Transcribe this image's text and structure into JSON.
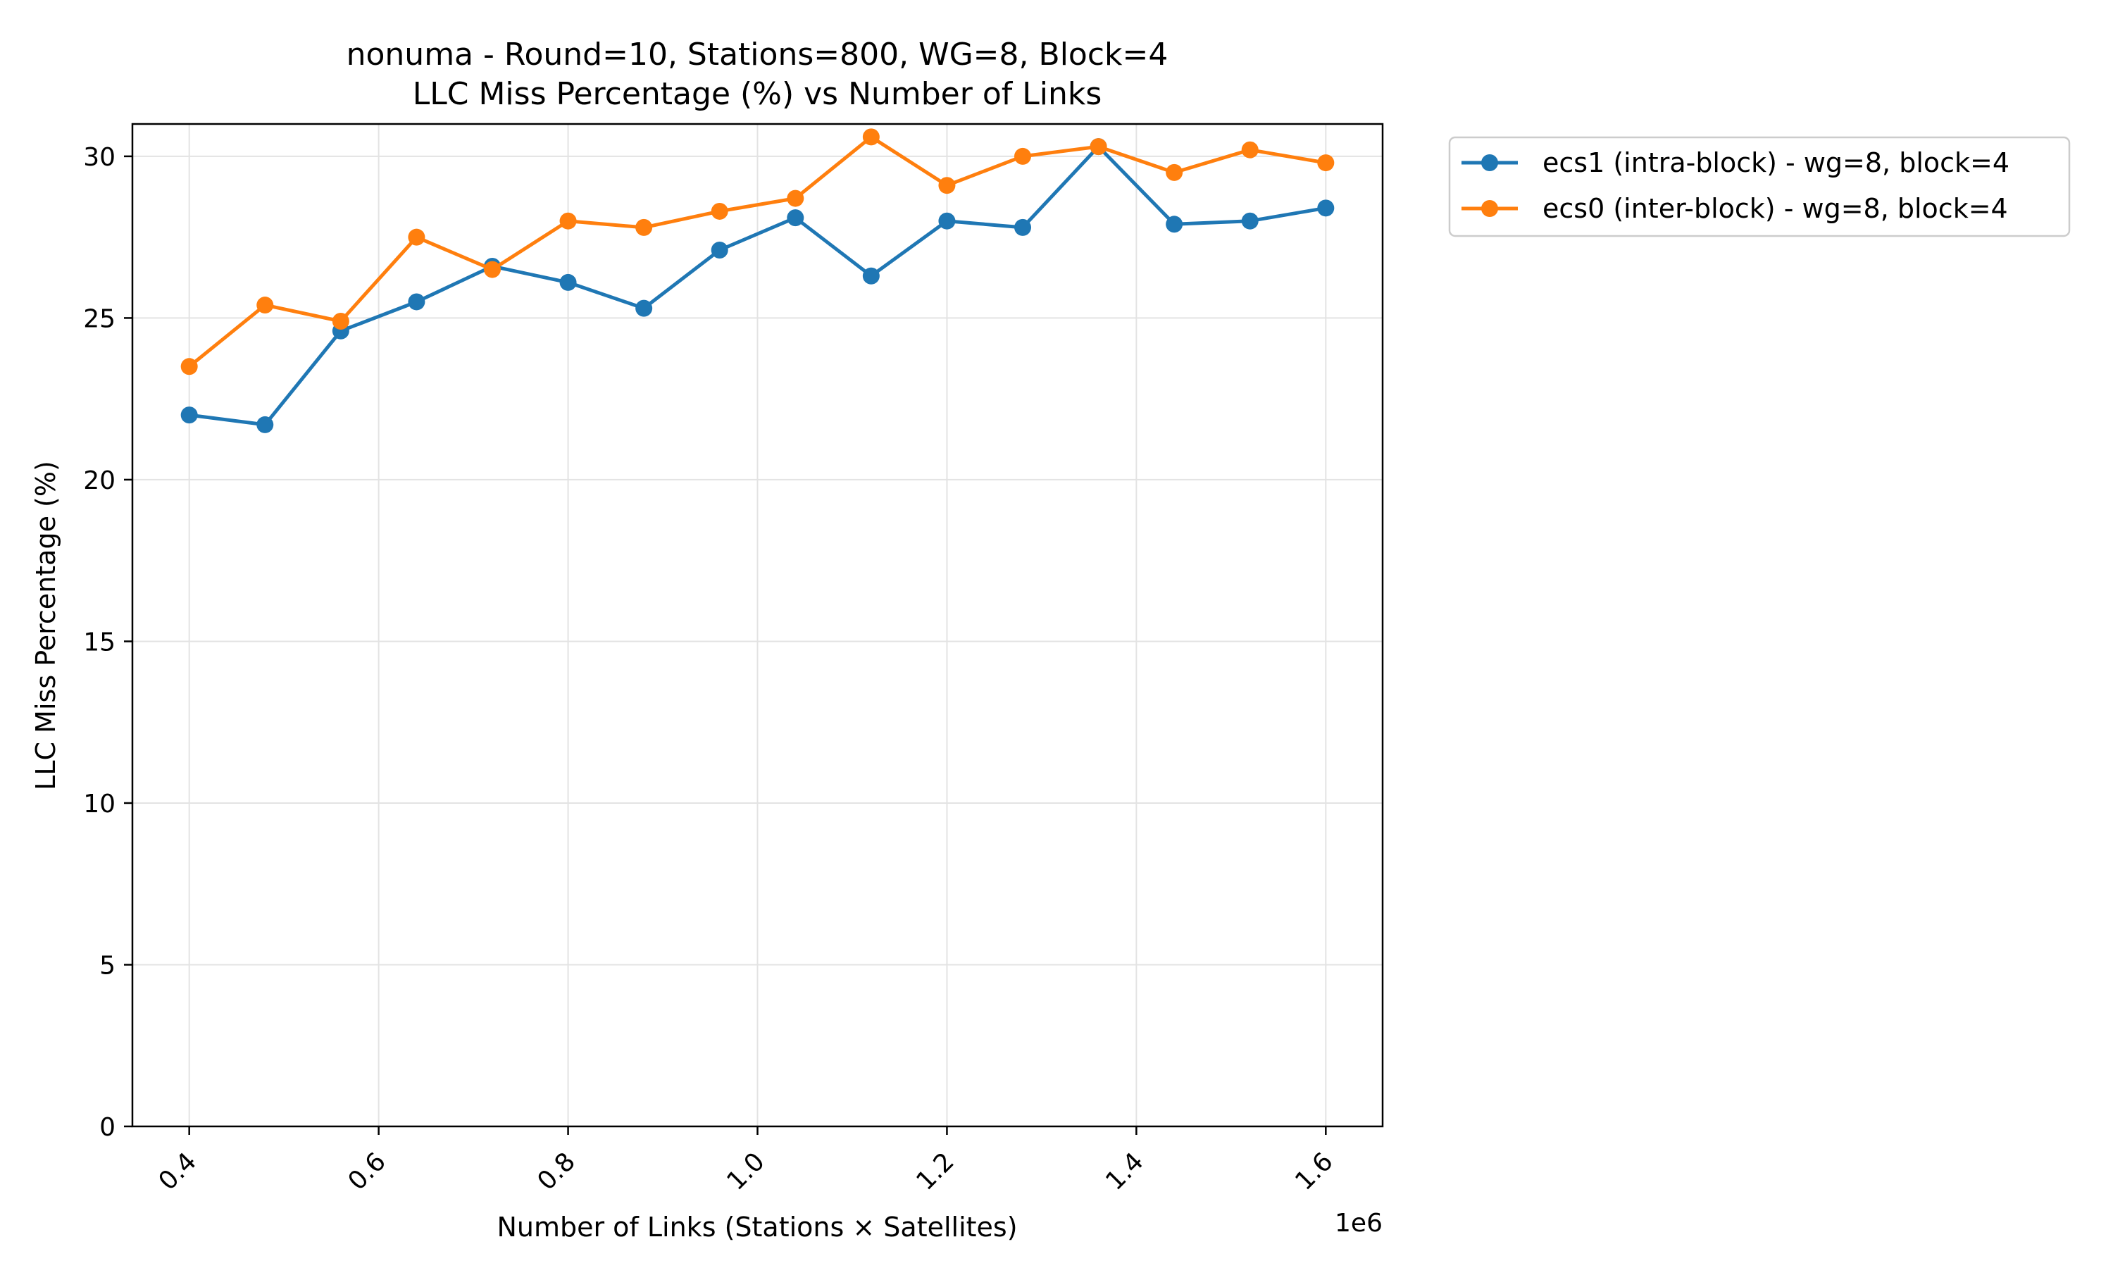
{
  "chart_data": {
    "type": "line",
    "title": "nonuma - Round=10, Stations=800, WG=8, Block=4",
    "subtitle": "LLC Miss Percentage (%) vs Number of Links",
    "xlabel": "Number of Links (Stations × Satellites)",
    "ylabel": "LLC Miss Percentage (%)",
    "x_offset_label": "1e6",
    "xlim": [
      0.34,
      1.66
    ],
    "ylim": [
      0,
      31
    ],
    "x_ticks": [
      0.4,
      0.6,
      0.8,
      1.0,
      1.2,
      1.4,
      1.6
    ],
    "x_tick_labels": [
      "0.4",
      "0.6",
      "0.8",
      "1.0",
      "1.2",
      "1.4",
      "1.6"
    ],
    "y_ticks": [
      0,
      5,
      10,
      15,
      20,
      25,
      30
    ],
    "y_tick_labels": [
      "0",
      "5",
      "10",
      "15",
      "20",
      "25",
      "30"
    ],
    "grid": true,
    "legend_position": "outside-top-right",
    "x": [
      0.4,
      0.48,
      0.56,
      0.64,
      0.72,
      0.8,
      0.88,
      0.96,
      1.04,
      1.12,
      1.2,
      1.28,
      1.36,
      1.44,
      1.52,
      1.6
    ],
    "series": [
      {
        "name": "ecs1 (intra-block) - wg=8, block=4",
        "color": "#1f77b4",
        "values": [
          22.0,
          21.7,
          24.6,
          25.5,
          26.6,
          26.1,
          25.3,
          27.1,
          28.1,
          26.3,
          28.0,
          27.8,
          30.3,
          27.9,
          28.0,
          28.4
        ]
      },
      {
        "name": "ecs0 (inter-block) - wg=8, block=4",
        "color": "#ff7f0e",
        "values": [
          23.5,
          25.4,
          24.9,
          27.5,
          26.5,
          28.0,
          27.8,
          28.3,
          28.7,
          30.6,
          29.1,
          30.0,
          30.3,
          29.5,
          30.2,
          29.8
        ]
      }
    ]
  }
}
